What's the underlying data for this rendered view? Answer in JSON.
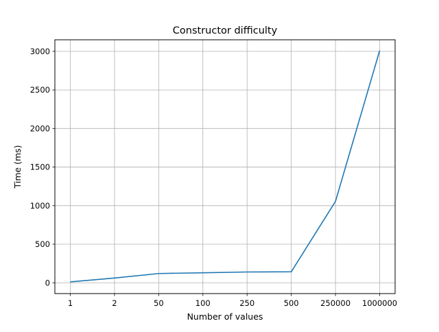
{
  "chart_data": {
    "type": "line",
    "title": "Constructor difficulty",
    "xlabel": "Number of values",
    "ylabel": "Time (ms)",
    "categories": [
      "1",
      "2",
      "50",
      "100",
      "250",
      "500",
      "250000",
      "1000000"
    ],
    "series": [
      {
        "values": [
          12,
          62,
          120,
          130,
          140,
          143,
          1055,
          3010
        ]
      }
    ],
    "ylim": [
      -140,
      3150
    ],
    "yticks": [
      0,
      500,
      1000,
      1500,
      2000,
      2500,
      3000
    ],
    "grid": true,
    "line_color": "#1f77b4"
  }
}
